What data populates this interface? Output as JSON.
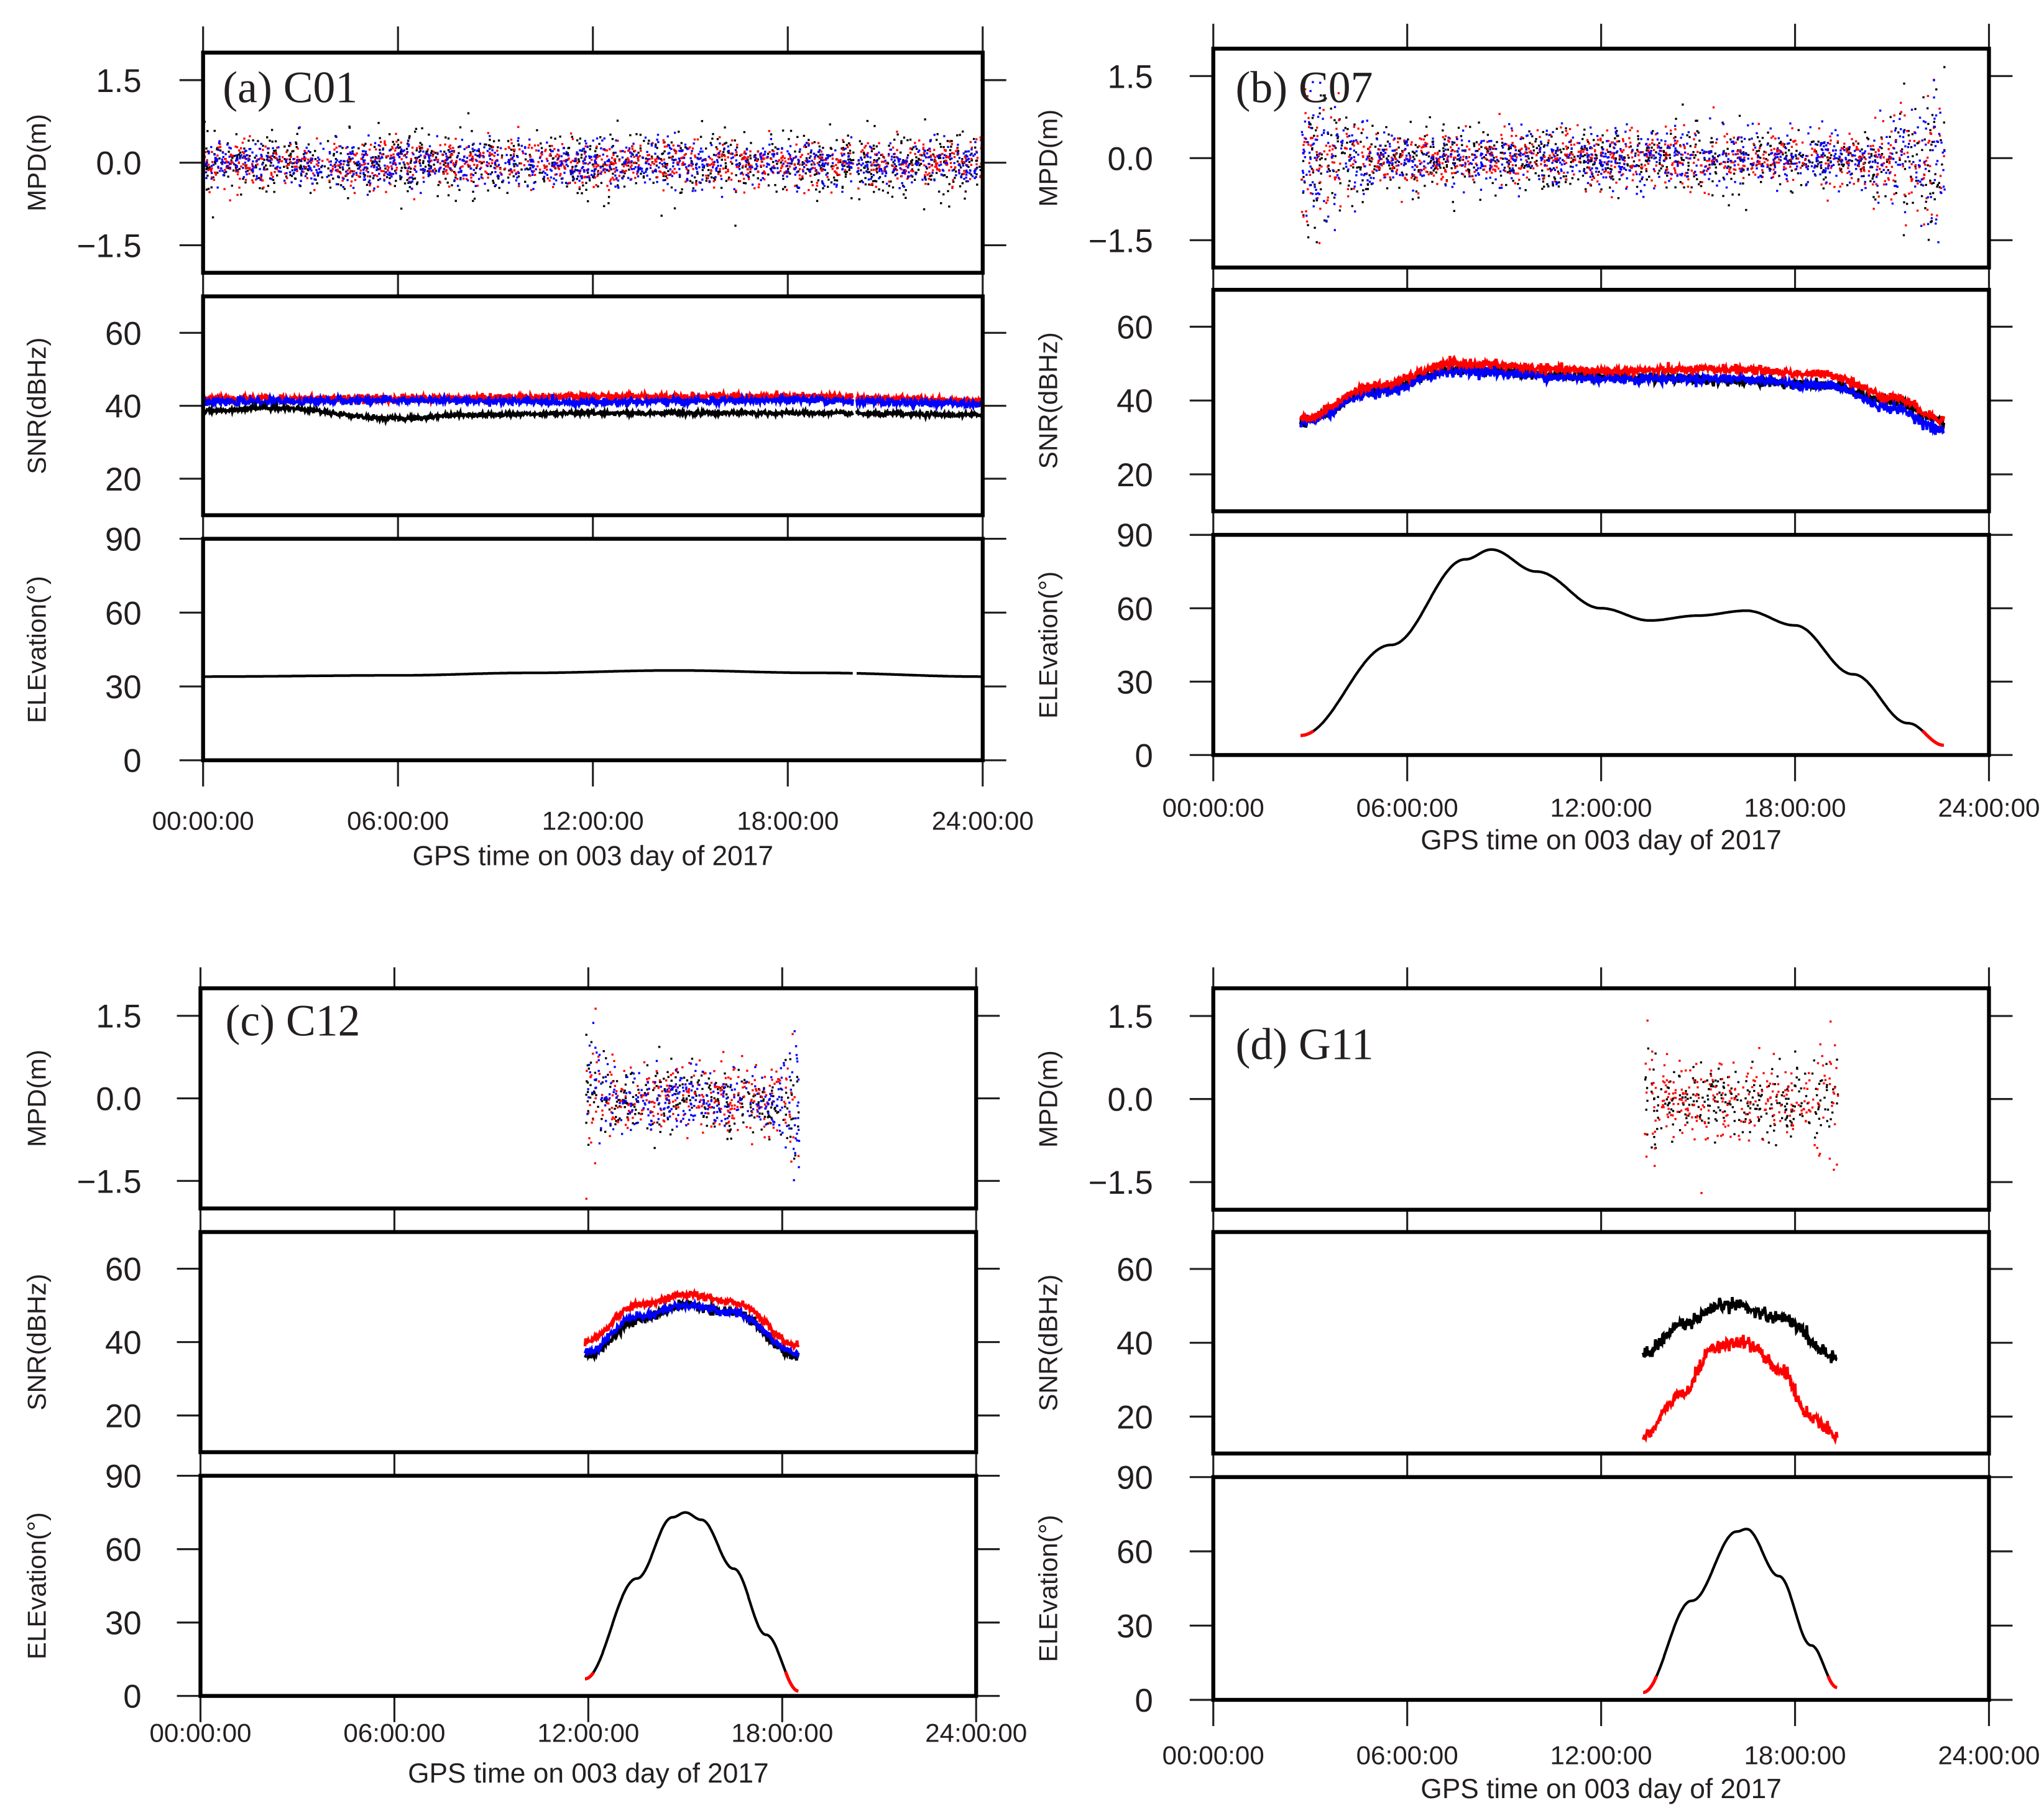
{
  "chart_data": [
    {
      "type": "scatter+line",
      "title": "(a) C01",
      "xlabel": "GPS time on 003 day of 2017",
      "xticks": [
        "00:00:00",
        "06:00:00",
        "12:00:00",
        "18:00:00",
        "24:00:00"
      ],
      "xlim_hours": [
        0,
        24
      ],
      "time_range_hours": [
        0,
        24
      ],
      "data_gap_hours": [
        20.0,
        20.1
      ],
      "mpd": {
        "ylabel": "MPD(m)",
        "ylim": [
          -2,
          2
        ],
        "yticks": [
          "1.5",
          "0.0",
          "−1.5"
        ],
        "ytick_values": [
          1.5,
          0,
          -1.5
        ],
        "series": [
          {
            "name": "black",
            "color": "#000000",
            "std": 0.28,
            "edge_std": 0.28
          },
          {
            "name": "red",
            "color": "#ff0000",
            "std": 0.2,
            "edge_std": 0.2
          },
          {
            "name": "blue",
            "color": "#0000ff",
            "std": 0.2,
            "edge_std": 0.2
          }
        ]
      },
      "snr": {
        "ylabel": "SNR(dBHz)",
        "ylim": [
          10,
          70
        ],
        "yticks": [
          "60",
          "40",
          "20"
        ],
        "ytick_values": [
          60,
          40,
          20
        ],
        "series": [
          {
            "name": "red",
            "color": "#ff0000",
            "points": [
              [
                0,
                42
              ],
              [
                6,
                42
              ],
              [
                12,
                42.5
              ],
              [
                18,
                42.5
              ],
              [
                24,
                41.5
              ]
            ],
            "noise": 0.5
          },
          {
            "name": "blue",
            "color": "#0000ff",
            "points": [
              [
                0,
                41
              ],
              [
                6,
                41.5
              ],
              [
                12,
                41
              ],
              [
                18,
                41.5
              ],
              [
                24,
                40.5
              ]
            ],
            "noise": 0.5
          },
          {
            "name": "black",
            "color": "#000000",
            "points": [
              [
                0,
                38.5
              ],
              [
                2,
                39.5
              ],
              [
                6,
                36.5
              ],
              [
                8,
                37.5
              ],
              [
                12,
                38
              ],
              [
                18,
                38
              ],
              [
                24,
                37.5
              ]
            ],
            "noise": 0.3
          }
        ]
      },
      "elevation": {
        "ylabel": "ELEvation(°)",
        "ylim": [
          0,
          90
        ],
        "yticks": [
          "90",
          "60",
          "30",
          "0"
        ],
        "ytick_values": [
          90,
          60,
          30,
          0
        ],
        "points": [
          [
            0,
            34
          ],
          [
            6,
            34.5
          ],
          [
            10,
            35.5
          ],
          [
            14.5,
            36.5
          ],
          [
            19,
            35.5
          ],
          [
            24,
            34
          ]
        ]
      }
    },
    {
      "type": "scatter+line",
      "title": "(b) C07",
      "xlabel": "GPS time on 003 day of 2017",
      "xticks": [
        "00:00:00",
        "06:00:00",
        "12:00:00",
        "18:00:00",
        "24:00:00"
      ],
      "xlim_hours": [
        0,
        24
      ],
      "time_range_hours": [
        2.7,
        22.6
      ],
      "mpd": {
        "ylabel": "MPD(m)",
        "ylim": [
          -2,
          2
        ],
        "yticks": [
          "1.5",
          "0.0",
          "−1.5"
        ],
        "ytick_values": [
          1.5,
          0,
          -1.5
        ],
        "series": [
          {
            "name": "black",
            "color": "#000000",
            "std": 0.28,
            "edge_std": 0.8
          },
          {
            "name": "red",
            "color": "#ff0000",
            "std": 0.25,
            "edge_std": 0.8
          },
          {
            "name": "blue",
            "color": "#0000ff",
            "std": 0.25,
            "edge_std": 0.7
          }
        ]
      },
      "snr": {
        "ylabel": "SNR(dBHz)",
        "ylim": [
          10,
          70
        ],
        "yticks": [
          "60",
          "40",
          "20"
        ],
        "ytick_values": [
          60,
          40,
          20
        ],
        "series": [
          {
            "name": "black",
            "color": "#000000",
            "points": [
              [
                2.7,
                34
              ],
              [
                5,
                43
              ],
              [
                7.5,
                48.5
              ],
              [
                12,
                46.5
              ],
              [
                16,
                45.5
              ],
              [
                19,
                44
              ],
              [
                21,
                40
              ],
              [
                22.6,
                34
              ]
            ],
            "noise": 0.7
          },
          {
            "name": "blue",
            "color": "#0000ff",
            "points": [
              [
                2.7,
                34
              ],
              [
                5,
                42
              ],
              [
                7.5,
                48
              ],
              [
                12,
                46
              ],
              [
                16,
                46
              ],
              [
                19,
                44
              ],
              [
                21,
                38
              ],
              [
                22.6,
                32
              ]
            ],
            "noise": 0.7
          },
          {
            "name": "red",
            "color": "#ff0000",
            "points": [
              [
                2.7,
                35
              ],
              [
                5,
                44
              ],
              [
                7.5,
                50
              ],
              [
                12,
                48
              ],
              [
                16,
                48.5
              ],
              [
                19,
                47
              ],
              [
                21,
                41
              ],
              [
                22.6,
                35
              ]
            ],
            "noise": 0.6
          }
        ]
      },
      "elevation": {
        "ylabel": "ELEvation(°)",
        "ylim": [
          0,
          90
        ],
        "yticks": [
          "90",
          "60",
          "30",
          "0"
        ],
        "ytick_values": [
          90,
          60,
          30,
          0
        ],
        "points": [
          [
            2.7,
            8
          ],
          [
            5.5,
            45
          ],
          [
            7.8,
            80
          ],
          [
            8.6,
            84
          ],
          [
            10,
            75
          ],
          [
            12,
            60
          ],
          [
            13.5,
            55
          ],
          [
            15,
            57
          ],
          [
            16.5,
            59
          ],
          [
            18,
            53
          ],
          [
            19.8,
            33
          ],
          [
            21.5,
            13
          ],
          [
            22.6,
            4
          ]
        ]
      }
    },
    {
      "type": "scatter+line",
      "title": "(c) C12",
      "xlabel": "GPS time on 003 day of 2017",
      "xticks": [
        "00:00:00",
        "06:00:00",
        "12:00:00",
        "18:00:00",
        "24:00:00"
      ],
      "xlim_hours": [
        0,
        24
      ],
      "time_range_hours": [
        11.9,
        18.5
      ],
      "mpd": {
        "ylabel": "MPD(m)",
        "ylim": [
          -2,
          2
        ],
        "yticks": [
          "1.5",
          "0.0",
          "−1.5"
        ],
        "ytick_values": [
          1.5,
          0,
          -1.5
        ],
        "series": [
          {
            "name": "black",
            "color": "#000000",
            "std": 0.3,
            "edge_std": 0.7
          },
          {
            "name": "red",
            "color": "#ff0000",
            "std": 0.3,
            "edge_std": 0.8
          },
          {
            "name": "blue",
            "color": "#0000ff",
            "std": 0.25,
            "edge_std": 0.6
          }
        ]
      },
      "snr": {
        "ylabel": "SNR(dBHz)",
        "ylim": [
          10,
          70
        ],
        "yticks": [
          "60",
          "40",
          "20"
        ],
        "ytick_values": [
          60,
          40,
          20
        ],
        "series": [
          {
            "name": "black",
            "color": "#000000",
            "points": [
              [
                11.9,
                36
              ],
              [
                13.5,
                46
              ],
              [
                15,
                50
              ],
              [
                16.5,
                48
              ],
              [
                18.5,
                36
              ]
            ],
            "noise": 0.6
          },
          {
            "name": "blue",
            "color": "#0000ff",
            "points": [
              [
                11.9,
                37
              ],
              [
                13.5,
                47
              ],
              [
                15,
                50
              ],
              [
                16.5,
                48
              ],
              [
                18.5,
                37
              ]
            ],
            "noise": 0.5
          },
          {
            "name": "red",
            "color": "#ff0000",
            "points": [
              [
                11.9,
                40
              ],
              [
                13.5,
                50
              ],
              [
                15,
                53
              ],
              [
                16.5,
                51
              ],
              [
                18.5,
                39
              ]
            ],
            "noise": 0.5
          }
        ]
      },
      "elevation": {
        "ylabel": "ELEvation(°)",
        "ylim": [
          0,
          90
        ],
        "yticks": [
          "90",
          "60",
          "30",
          "0"
        ],
        "ytick_values": [
          90,
          60,
          30,
          0
        ],
        "points": [
          [
            11.9,
            7
          ],
          [
            13.5,
            48
          ],
          [
            14.6,
            73
          ],
          [
            15,
            75
          ],
          [
            15.5,
            72
          ],
          [
            16.5,
            52
          ],
          [
            17.5,
            25
          ],
          [
            18.5,
            2
          ]
        ]
      }
    },
    {
      "type": "scatter+line",
      "title": "(d) G11",
      "xlabel": "GPS time on 003 day of 2017",
      "xticks": [
        "00:00:00",
        "06:00:00",
        "12:00:00",
        "18:00:00",
        "24:00:00"
      ],
      "xlim_hours": [
        0,
        24
      ],
      "time_range_hours": [
        13.3,
        19.3
      ],
      "mpd": {
        "ylabel": "MPD(m)",
        "ylim": [
          -2,
          2
        ],
        "yticks": [
          "1.5",
          "0.0",
          "−1.5"
        ],
        "ytick_values": [
          1.5,
          0,
          -1.5
        ],
        "series": [
          {
            "name": "black",
            "color": "#000000",
            "std": 0.3,
            "edge_std": 0.6
          },
          {
            "name": "red",
            "color": "#ff0000",
            "std": 0.35,
            "edge_std": 0.8
          }
        ]
      },
      "snr": {
        "ylabel": "SNR(dBHz)",
        "ylim": [
          10,
          70
        ],
        "yticks": [
          "60",
          "40",
          "20"
        ],
        "ytick_values": [
          60,
          40,
          20
        ],
        "series": [
          {
            "name": "black",
            "color": "#000000",
            "points": [
              [
                13.3,
                37
              ],
              [
                14.5,
                45
              ],
              [
                16,
                50.5
              ],
              [
                17.5,
                47
              ],
              [
                19.3,
                36
              ]
            ],
            "noise": 0.9
          },
          {
            "name": "red",
            "color": "#ff0000",
            "points": [
              [
                13.3,
                15
              ],
              [
                14.5,
                26
              ],
              [
                15.5,
                39
              ],
              [
                16.5,
                40
              ],
              [
                17.5,
                33
              ],
              [
                18.5,
                20
              ],
              [
                19.3,
                15
              ]
            ],
            "noise": 0.9
          }
        ]
      },
      "elevation": {
        "ylabel": "ELEvation(°)",
        "ylim": [
          0,
          90
        ],
        "yticks": [
          "90",
          "60",
          "30",
          "0"
        ],
        "ytick_values": [
          90,
          60,
          30,
          0
        ],
        "points": [
          [
            13.3,
            3
          ],
          [
            14.8,
            40
          ],
          [
            16.2,
            68
          ],
          [
            16.5,
            69
          ],
          [
            17.5,
            50
          ],
          [
            18.5,
            22
          ],
          [
            19.3,
            5
          ]
        ]
      }
    }
  ]
}
